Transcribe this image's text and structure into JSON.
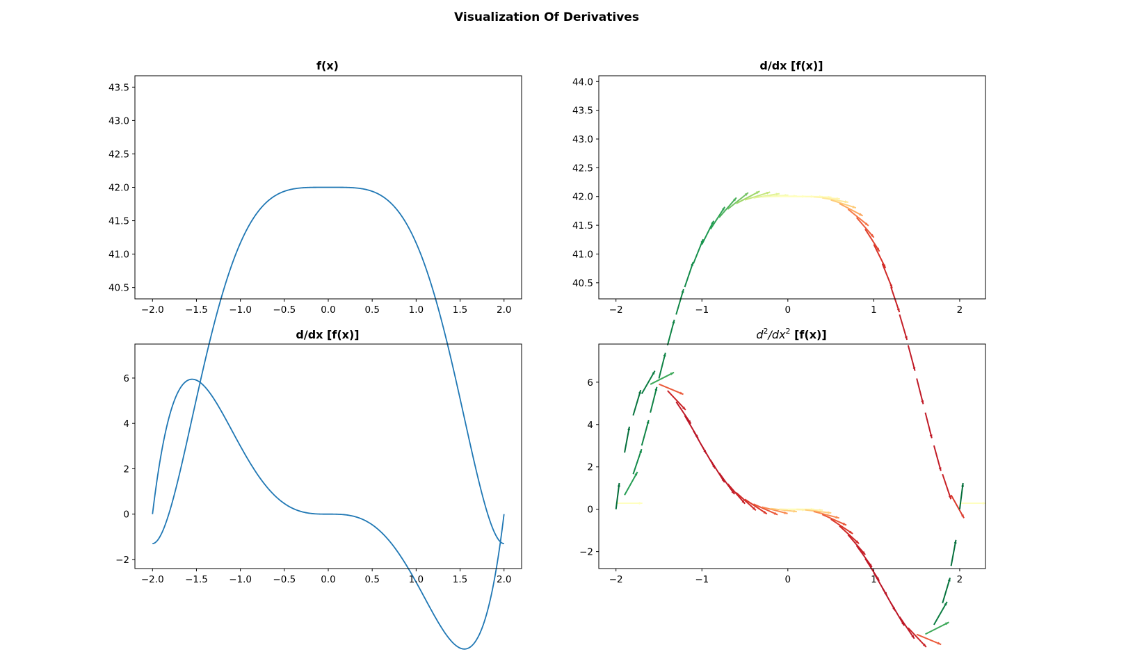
{
  "figure": {
    "title": "Visualization Of Derivatives"
  },
  "chart_data": [
    {
      "type": "line",
      "title": "f(x)",
      "function": "x^6/6 - x^4 + 42",
      "x_range": [
        -2,
        2
      ],
      "xlim": [
        -2.2,
        2.2
      ],
      "ylim": [
        40.33,
        43.67
      ],
      "x_ticks": [
        "−2.0",
        "−1.5",
        "−1.0",
        "−0.5",
        "0.0",
        "0.5",
        "1.0",
        "1.5",
        "2.0"
      ],
      "x_tick_values": [
        -2.0,
        -1.5,
        -1.0,
        -0.5,
        0.0,
        0.5,
        1.0,
        1.5,
        2.0
      ],
      "y_ticks": [
        "40.5",
        "41.0",
        "41.5",
        "42.0",
        "42.5",
        "43.0",
        "43.5"
      ],
      "y_tick_values": [
        40.5,
        41.0,
        41.5,
        42.0,
        42.5,
        43.0,
        43.5
      ],
      "series": [
        {
          "color": "#1f77b4"
        }
      ]
    },
    {
      "type": "quiver",
      "title": "d/dx [f(x)]",
      "function": "x^6/6 - x^4 + 42",
      "derivative": "x^5 - 4x^3",
      "x_range": [
        -2,
        2
      ],
      "colormap": "RdYlGn",
      "xlim": [
        -2.2,
        2.3
      ],
      "ylim": [
        40.22,
        44.1
      ],
      "x_ticks": [
        "−2",
        "−1",
        "0",
        "1",
        "2"
      ],
      "x_tick_values": [
        -2,
        -1,
        0,
        1,
        2
      ],
      "y_ticks": [
        "40.5",
        "41.0",
        "41.5",
        "42.0",
        "42.5",
        "43.0",
        "43.5",
        "44.0"
      ],
      "y_tick_values": [
        40.5,
        41.0,
        41.5,
        42.0,
        42.5,
        43.0,
        43.5,
        44.0
      ]
    },
    {
      "type": "line",
      "title": "d/dx [f(x)]",
      "function": "x^5 - 4x^3",
      "x_range": [
        -2,
        2
      ],
      "xlim": [
        -2.2,
        2.2
      ],
      "ylim": [
        -2.4,
        7.5
      ],
      "x_ticks": [
        "−2.0",
        "−1.5",
        "−1.0",
        "−0.5",
        "0.0",
        "0.5",
        "1.0",
        "1.5",
        "2.0"
      ],
      "x_tick_values": [
        -2.0,
        -1.5,
        -1.0,
        -0.5,
        0.0,
        0.5,
        1.0,
        1.5,
        2.0
      ],
      "y_ticks": [
        "−2",
        "0",
        "2",
        "4",
        "6"
      ],
      "y_tick_values": [
        -2,
        0,
        2,
        4,
        6
      ],
      "series": [
        {
          "color": "#1f77b4"
        }
      ]
    },
    {
      "type": "quiver",
      "title_prefix": "d",
      "title_sup1": "2",
      "title_mid": "/dx",
      "title_sup2": "2",
      "title_suffix": " [f(x)]",
      "function": "x^5 - 4x^3",
      "derivative": "5x^4 - 12x^2",
      "x_range": [
        -2,
        2
      ],
      "colormap": "RdYlGn",
      "xlim": [
        -2.2,
        2.3
      ],
      "ylim": [
        -2.8,
        7.8
      ],
      "x_ticks": [
        "−2",
        "−1",
        "0",
        "1",
        "2"
      ],
      "x_tick_values": [
        -2,
        -1,
        0,
        1,
        2
      ],
      "y_ticks": [
        "−2",
        "0",
        "2",
        "4",
        "6"
      ],
      "y_tick_values": [
        -2,
        0,
        2,
        4,
        6
      ]
    }
  ]
}
